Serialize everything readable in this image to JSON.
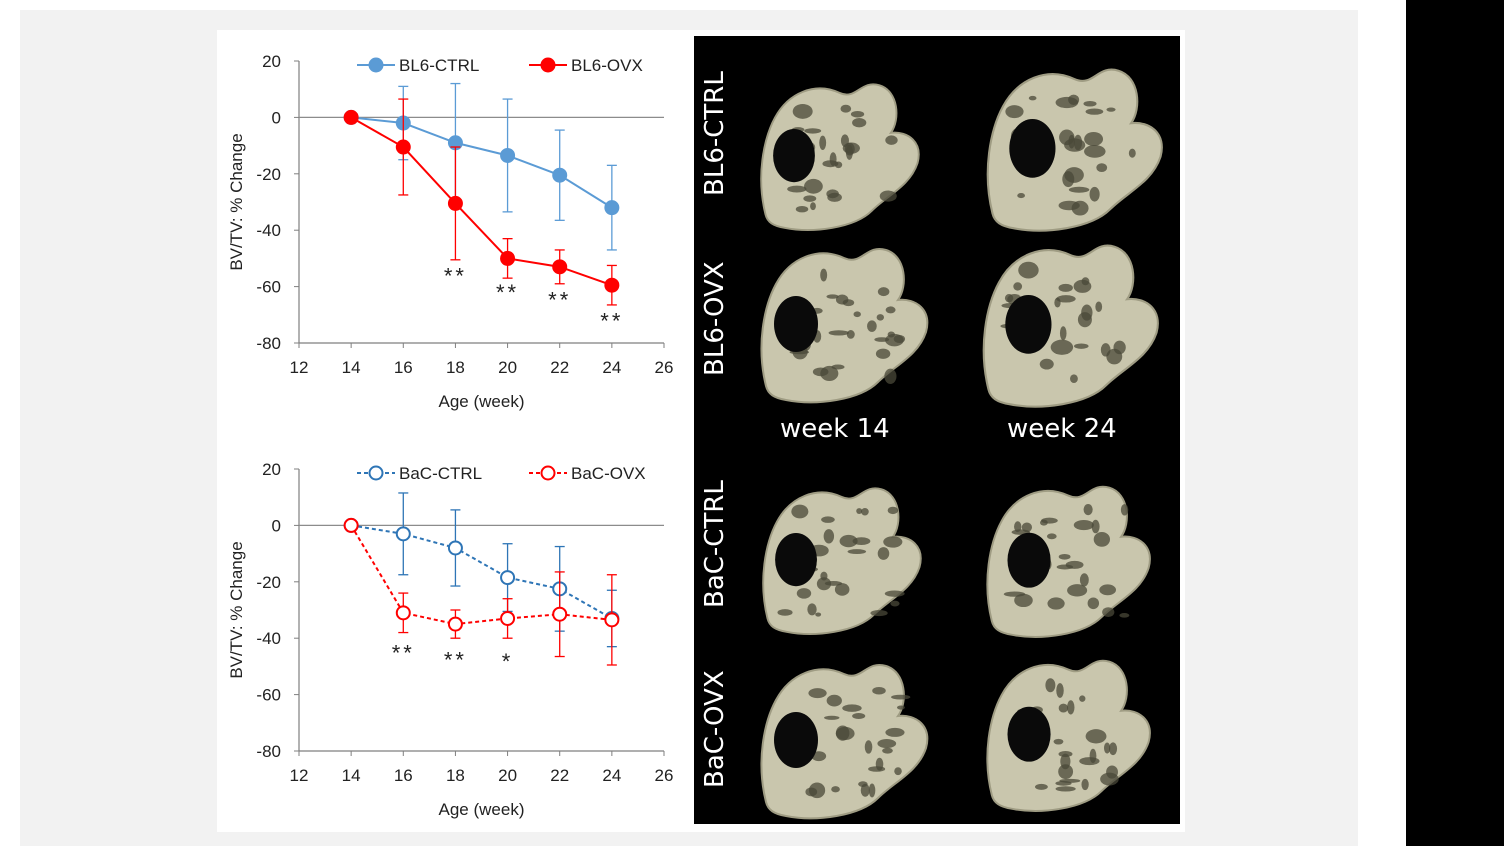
{
  "chart_data": [
    {
      "type": "line",
      "xlabel": "Age (week)",
      "ylabel": "BV/TV: % Change",
      "xlim": [
        12,
        26
      ],
      "ylim": [
        -80,
        20
      ],
      "xticks": [
        12,
        14,
        16,
        18,
        20,
        22,
        24,
        26
      ],
      "yticks": [
        20,
        0,
        -20,
        -40,
        -60,
        -80
      ],
      "zero_line": true,
      "legend_position": "top",
      "series": [
        {
          "name": "BL6-CTRL",
          "color": "#5b9bd5",
          "marker": "filled-circle",
          "line": "solid",
          "x": [
            14,
            16,
            18,
            20,
            22,
            24
          ],
          "y": [
            0,
            -2,
            -9,
            -13.5,
            -20.5,
            -32
          ],
          "err": [
            0,
            13,
            21,
            20,
            16,
            15
          ]
        },
        {
          "name": "BL6-OVX",
          "color": "#ff0000",
          "marker": "filled-circle",
          "line": "solid",
          "x": [
            14,
            16,
            18,
            20,
            22,
            24
          ],
          "y": [
            0,
            -10.5,
            -30.5,
            -50,
            -53,
            -59.5
          ],
          "err": [
            0,
            17,
            20,
            7,
            6,
            7
          ]
        }
      ],
      "annotations": [
        {
          "x": 18,
          "y": -56,
          "text": "**"
        },
        {
          "x": 20,
          "y": -62,
          "text": "**"
        },
        {
          "x": 22,
          "y": -64.5,
          "text": "**"
        },
        {
          "x": 24,
          "y": -72,
          "text": "**"
        }
      ]
    },
    {
      "type": "line",
      "xlabel": "Age (week)",
      "ylabel": "BV/TV: % Change",
      "xlim": [
        12,
        26
      ],
      "ylim": [
        -80,
        20
      ],
      "xticks": [
        12,
        14,
        16,
        18,
        20,
        22,
        24,
        26
      ],
      "yticks": [
        20,
        0,
        -20,
        -40,
        -60,
        -80
      ],
      "zero_line": true,
      "legend_position": "top",
      "series": [
        {
          "name": "BaC-CTRL",
          "color": "#2e75b6",
          "marker": "open-circle",
          "line": "dashed",
          "x": [
            14,
            16,
            18,
            20,
            22,
            24
          ],
          "y": [
            0,
            -3,
            -8,
            -18.5,
            -22.5,
            -33
          ],
          "err": [
            0,
            14.5,
            13.5,
            12,
            15,
            10
          ]
        },
        {
          "name": "BaC-OVX",
          "color": "#ff0000",
          "marker": "open-circle",
          "line": "dashed",
          "x": [
            14,
            16,
            18,
            20,
            22,
            24
          ],
          "y": [
            0,
            -31,
            -35,
            -33,
            -31.5,
            -33.5
          ],
          "err": [
            0,
            7,
            5,
            7,
            15,
            16
          ]
        }
      ],
      "annotations": [
        {
          "x": 16,
          "y": -45,
          "text": "**"
        },
        {
          "x": 18,
          "y": -47.5,
          "text": "**"
        },
        {
          "x": 20,
          "y": -48,
          "text": "*"
        }
      ]
    }
  ],
  "image_panel": {
    "row_labels": [
      "BL6-CTRL",
      "BL6-OVX",
      "BaC-CTRL",
      "BaC-OVX"
    ],
    "column_labels": [
      "week 14",
      "week 24"
    ],
    "background": "#000000",
    "bone_color": "#c9c6ad"
  }
}
